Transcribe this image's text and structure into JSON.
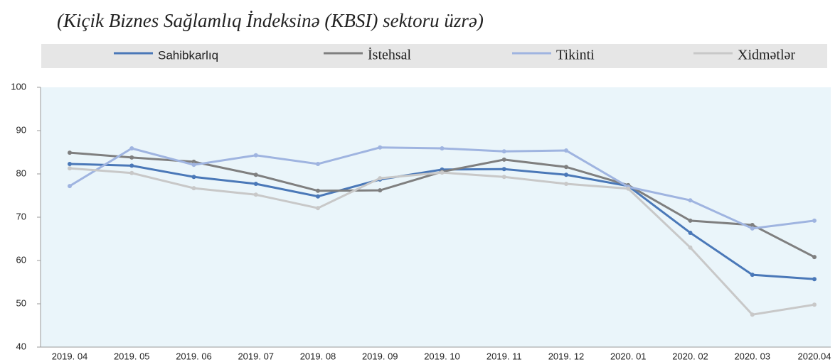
{
  "chart_data": {
    "type": "line",
    "title": "(Kiçik Biznes Sağlamlıq İndeksinə (KBSI) sektoru üzrə)",
    "categories": [
      "2019. 04",
      "2019. 05",
      "2019. 06",
      "2019. 07",
      "2019. 08",
      "2019. 09",
      "2019. 10",
      "2019. 11",
      "2019. 12",
      "2020. 01",
      "2020. 02",
      "2020. 03",
      "2020.04"
    ],
    "series": [
      {
        "name": "Sahibkarlıq",
        "color": "#4a78b8",
        "values": [
          82.3,
          81.9,
          79.3,
          77.7,
          74.8,
          78.7,
          81.0,
          81.1,
          79.8,
          77.2,
          66.4,
          56.7,
          55.7
        ]
      },
      {
        "name": "İstehsal",
        "color": "#7f7f7f",
        "values": [
          84.9,
          83.8,
          82.8,
          79.8,
          76.1,
          76.2,
          80.5,
          83.3,
          81.6,
          77.4,
          69.2,
          68.2,
          60.8
        ]
      },
      {
        "name": "Tikinti",
        "color": "#9fb4e0",
        "values": [
          77.2,
          85.9,
          82.1,
          84.3,
          82.3,
          86.1,
          85.9,
          85.2,
          85.4,
          77.0,
          73.9,
          67.4,
          69.2
        ]
      },
      {
        "name": "Xidmətlər",
        "color": "#c8c8c8",
        "values": [
          81.3,
          80.2,
          76.7,
          75.2,
          72.1,
          79.0,
          80.3,
          79.3,
          77.7,
          76.6,
          63.0,
          47.5,
          49.8
        ]
      }
    ],
    "ylim": [
      40,
      100
    ],
    "yticks": [
      40,
      50,
      60,
      70,
      80,
      90,
      100
    ],
    "grid": false
  }
}
